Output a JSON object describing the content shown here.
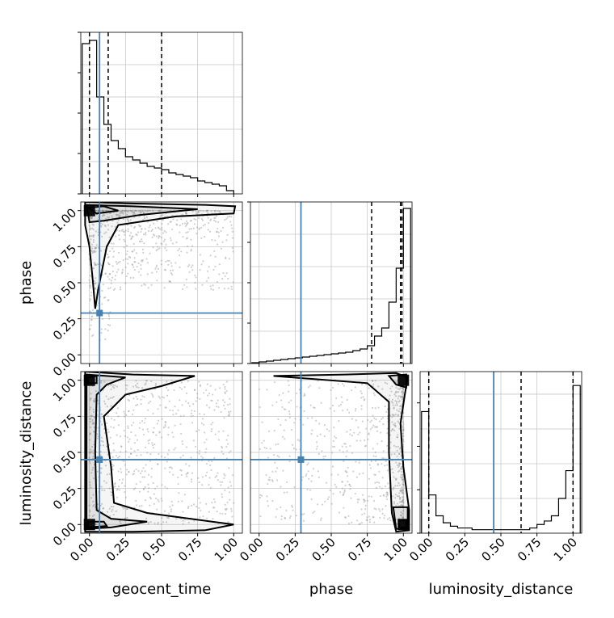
{
  "chart_data": {
    "type": "corner",
    "parameters": [
      "geocent_time",
      "phase",
      "luminosity_distance"
    ],
    "axis_labels": {
      "geocent_time": "geocent_time",
      "phase": "phase",
      "luminosity_distance": "luminosity_distance"
    },
    "tick_labels": [
      "0.00",
      "0.25",
      "0.50",
      "0.75",
      "1.00"
    ],
    "tick_values": [
      0.0,
      0.25,
      0.5,
      0.75,
      1.0
    ],
    "axis_range": [
      -0.06,
      1.06
    ],
    "truths": {
      "geocent_time": 0.07,
      "phase": 0.29,
      "luminosity_distance": 0.45
    },
    "colors": {
      "truth": "#4682b4",
      "hist": "#000000",
      "grid": "#c8c8c8",
      "points": "#9a9a9a"
    },
    "grid": true,
    "histograms": {
      "geocent_time": {
        "bin_edges": [
          -0.05,
          0.0,
          0.05,
          0.1,
          0.15,
          0.2,
          0.25,
          0.3,
          0.35,
          0.4,
          0.45,
          0.5,
          0.55,
          0.6,
          0.65,
          0.7,
          0.75,
          0.8,
          0.85,
          0.9,
          0.95,
          1.0
        ],
        "counts": [
          0.93,
          0.95,
          0.6,
          0.43,
          0.33,
          0.28,
          0.23,
          0.21,
          0.19,
          0.17,
          0.16,
          0.15,
          0.13,
          0.12,
          0.11,
          0.1,
          0.08,
          0.07,
          0.06,
          0.05,
          0.02
        ],
        "ymax": 1.0,
        "quantiles": [
          0.0,
          0.13,
          0.5
        ]
      },
      "phase": {
        "bin_edges": [
          -0.05,
          0.0,
          0.05,
          0.1,
          0.15,
          0.2,
          0.25,
          0.3,
          0.35,
          0.4,
          0.45,
          0.5,
          0.55,
          0.6,
          0.65,
          0.7,
          0.75,
          0.8,
          0.85,
          0.9,
          0.95,
          1.0,
          1.05
        ],
        "counts": [
          0.005,
          0.01,
          0.015,
          0.02,
          0.025,
          0.03,
          0.035,
          0.04,
          0.045,
          0.05,
          0.055,
          0.06,
          0.065,
          0.07,
          0.08,
          0.09,
          0.11,
          0.17,
          0.22,
          0.38,
          0.59,
          0.96
        ],
        "ymax": 1.0,
        "quantiles": [
          0.78,
          0.98,
          0.99
        ]
      },
      "luminosity_distance": {
        "bin_edges": [
          -0.05,
          0.0,
          0.05,
          0.1,
          0.15,
          0.2,
          0.25,
          0.3,
          0.35,
          0.4,
          0.45,
          0.5,
          0.55,
          0.6,
          0.65,
          0.7,
          0.75,
          0.8,
          0.85,
          0.9,
          0.95,
          1.0,
          1.05
        ],
        "counts": [
          0.7,
          0.22,
          0.1,
          0.06,
          0.04,
          0.03,
          0.03,
          0.02,
          0.02,
          0.02,
          0.02,
          0.02,
          0.02,
          0.02,
          0.02,
          0.03,
          0.05,
          0.07,
          0.1,
          0.2,
          0.36,
          0.85
        ],
        "ymax": 0.93,
        "quantiles": [
          0.0,
          0.64,
          1.0
        ]
      }
    },
    "panels_2d": [
      {
        "x": "geocent_time",
        "y": "phase",
        "density_peaks": [
          {
            "x": 0.0,
            "y": 1.0
          }
        ],
        "contours": [
          [
            [
              -0.03,
              1.06
            ],
            [
              0.25,
              1.05
            ],
            [
              0.8,
              1.04
            ],
            [
              1.01,
              1.03
            ],
            [
              1.0,
              0.98
            ],
            [
              0.6,
              0.96
            ],
            [
              0.2,
              0.9
            ],
            [
              0.12,
              0.75
            ],
            [
              0.06,
              0.45
            ],
            [
              0.04,
              0.32
            ],
            [
              0.02,
              0.55
            ],
            [
              0.0,
              0.75
            ],
            [
              -0.03,
              0.9
            ],
            [
              -0.03,
              1.06
            ]
          ],
          [
            [
              -0.02,
              1.04
            ],
            [
              0.3,
              1.03
            ],
            [
              0.75,
              1.01
            ],
            [
              0.35,
              0.97
            ],
            [
              0.1,
              0.93
            ],
            [
              0.0,
              0.92
            ],
            [
              -0.02,
              1.04
            ]
          ],
          [
            [
              -0.01,
              1.02
            ],
            [
              0.1,
              1.03
            ],
            [
              0.2,
              1.0
            ],
            [
              0.05,
              0.98
            ],
            [
              -0.01,
              1.02
            ]
          ]
        ]
      },
      {
        "x": "geocent_time",
        "y": "luminosity_distance",
        "density_peaks": [
          {
            "x": 0.0,
            "y": 1.0
          },
          {
            "x": 0.0,
            "y": 0.0
          }
        ],
        "contours": [
          [
            [
              -0.03,
              1.06
            ],
            [
              0.3,
              1.04
            ],
            [
              0.73,
              1.03
            ],
            [
              0.5,
              0.96
            ],
            [
              0.25,
              0.9
            ],
            [
              0.1,
              0.75
            ],
            [
              0.15,
              0.4
            ],
            [
              0.17,
              0.15
            ],
            [
              0.4,
              0.08
            ],
            [
              0.85,
              0.02
            ],
            [
              1.0,
              0.0
            ],
            [
              0.8,
              -0.04
            ],
            [
              0.3,
              -0.05
            ],
            [
              -0.03,
              -0.05
            ],
            [
              -0.03,
              1.06
            ]
          ],
          [
            [
              -0.02,
              1.04
            ],
            [
              0.25,
              1.02
            ],
            [
              0.12,
              0.97
            ],
            [
              0.05,
              0.9
            ],
            [
              0.04,
              0.5
            ],
            [
              0.05,
              0.1
            ],
            [
              0.15,
              0.04
            ],
            [
              0.4,
              0.02
            ],
            [
              0.15,
              -0.02
            ],
            [
              -0.02,
              -0.03
            ],
            [
              -0.02,
              1.04
            ]
          ],
          [
            [
              -0.01,
              1.02
            ],
            [
              0.05,
              1.03
            ],
            [
              0.05,
              0.98
            ],
            [
              -0.01,
              0.98
            ],
            [
              -0.01,
              1.02
            ]
          ],
          [
            [
              -0.01,
              0.02
            ],
            [
              0.1,
              0.02
            ],
            [
              0.12,
              -0.01
            ],
            [
              -0.01,
              -0.02
            ],
            [
              -0.01,
              0.02
            ]
          ]
        ]
      },
      {
        "x": "phase",
        "y": "luminosity_distance",
        "density_peaks": [
          {
            "x": 1.0,
            "y": 1.0
          },
          {
            "x": 1.0,
            "y": 0.0
          }
        ],
        "contours": [
          [
            [
              0.1,
              1.03
            ],
            [
              0.6,
              1.04
            ],
            [
              0.95,
              1.05
            ],
            [
              1.03,
              1.02
            ],
            [
              1.01,
              0.9
            ],
            [
              0.98,
              0.7
            ],
            [
              1.0,
              0.4
            ],
            [
              1.04,
              0.1
            ],
            [
              1.04,
              -0.04
            ],
            [
              0.95,
              -0.05
            ],
            [
              0.92,
              0.08
            ],
            [
              0.9,
              0.5
            ],
            [
              0.9,
              0.85
            ],
            [
              0.75,
              0.98
            ],
            [
              0.1,
              1.03
            ]
          ],
          [
            [
              0.9,
              1.03
            ],
            [
              1.02,
              1.04
            ],
            [
              1.02,
              0.95
            ],
            [
              0.95,
              0.97
            ],
            [
              0.9,
              1.03
            ]
          ],
          [
            [
              0.93,
              0.12
            ],
            [
              1.03,
              0.12
            ],
            [
              1.03,
              -0.03
            ],
            [
              0.95,
              -0.03
            ],
            [
              0.93,
              0.12
            ]
          ],
          [
            [
              0.97,
              0.03
            ],
            [
              1.02,
              0.03
            ],
            [
              1.02,
              -0.02
            ],
            [
              0.97,
              -0.02
            ],
            [
              0.97,
              0.03
            ]
          ]
        ]
      }
    ]
  }
}
